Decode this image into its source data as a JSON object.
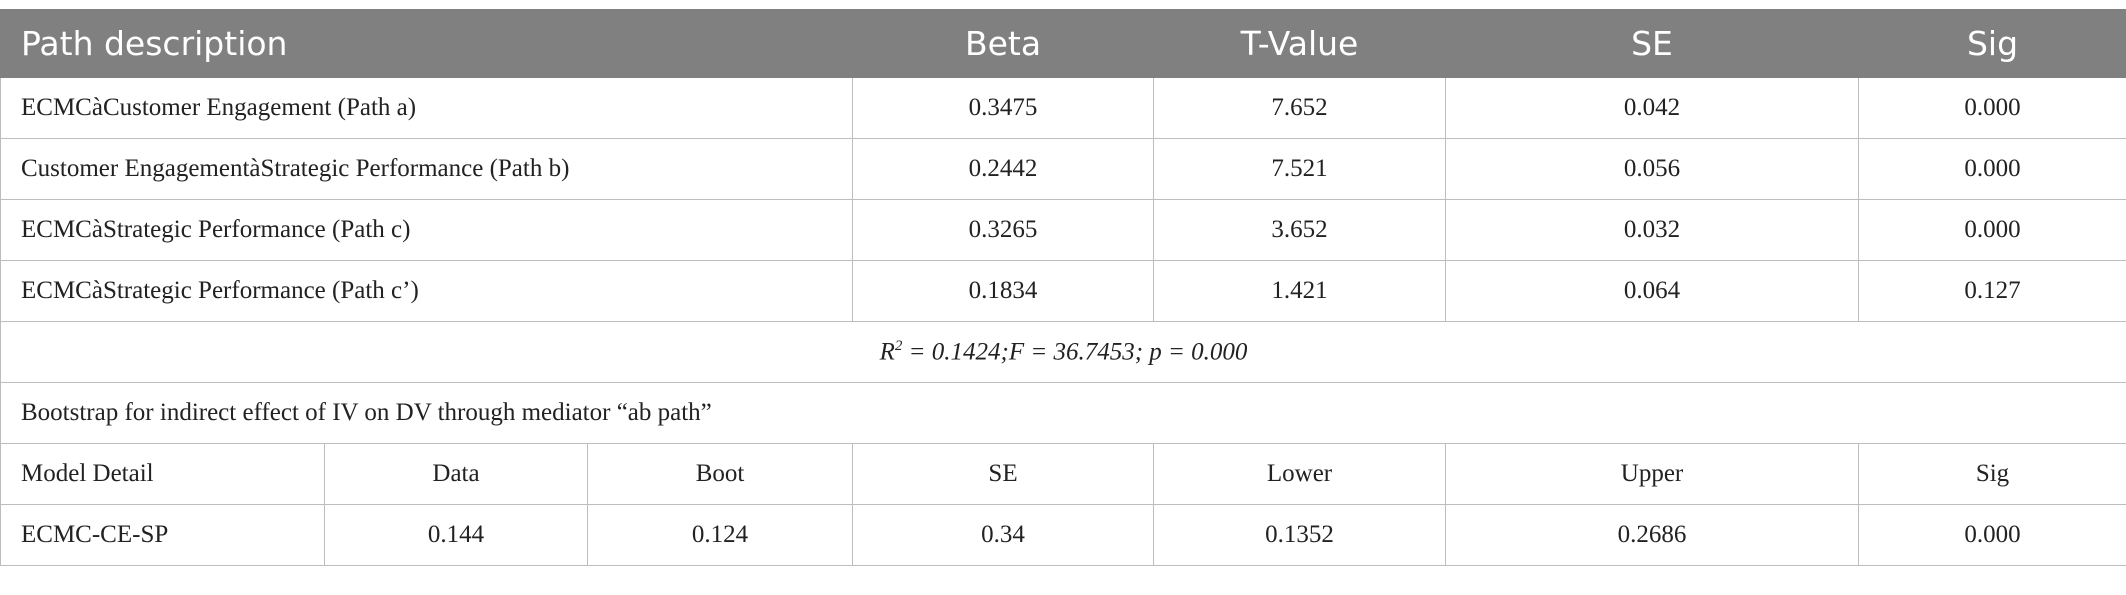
{
  "table": {
    "header": [
      "Path description",
      "Beta",
      "T-Value",
      "SE",
      "Sig"
    ],
    "rows": [
      [
        "ECMCàCustomer Engagement (Path a)",
        "0.3475",
        "7.652",
        "0.042",
        "0.000"
      ],
      [
        "Customer EngagementàStrategic Performance (Path b)",
        "0.2442",
        "7.521",
        "0.056",
        "0.000"
      ],
      [
        "ECMCàStrategic Performance (Path c)",
        "0.3265",
        "3.652",
        "0.032",
        "0.000"
      ],
      [
        "ECMCàStrategic Performance (Path c’)",
        "0.1834",
        "1.421",
        "0.064",
        "0.127"
      ]
    ],
    "model_fit": {
      "symbol": "R",
      "superscript": "2",
      "text": " = 0.1424;F = 36.7453; p = 0.000"
    },
    "bootstrap_title": "Bootstrap for indirect effect of IV on DV through mediator “ab path”",
    "bootstrap_header": [
      "Model Detail",
      "Data",
      "Boot",
      "SE",
      "Lower",
      "Upper",
      "Sig"
    ],
    "bootstrap_rows": [
      [
        "ECMC-CE-SP",
        "0.144",
        "0.124",
        "0.34",
        "0.1352",
        "0.2686",
        "0.000"
      ]
    ]
  }
}
